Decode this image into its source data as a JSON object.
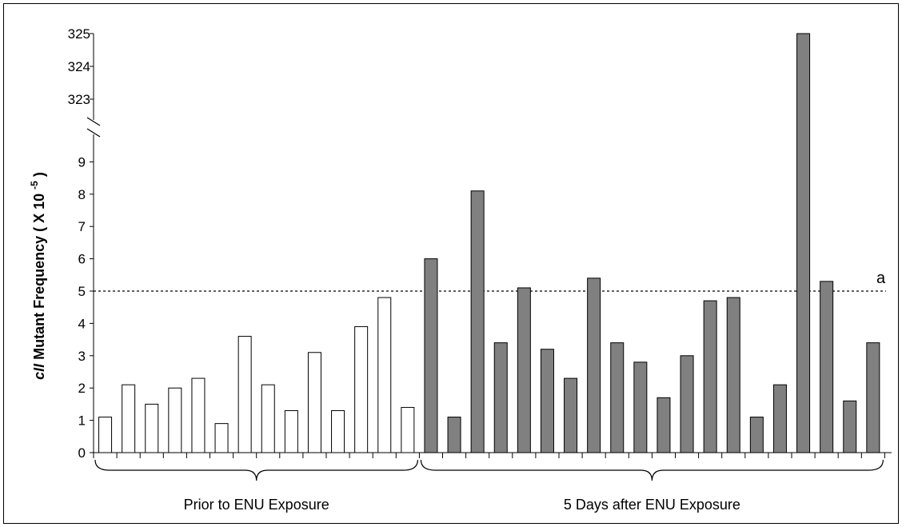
{
  "chart_data": {
    "type": "bar",
    "ylabel_italic": "cII",
    "ylabel_main": " Mutant Frequency ( X 10 ",
    "ylabel_exp": "-5",
    "ylabel_close": " )",
    "y_ticks_lower": [
      "0",
      "1",
      "2",
      "3",
      "4",
      "5",
      "6",
      "7",
      "8",
      "9"
    ],
    "y_ticks_upper": [
      "323",
      "324",
      "325"
    ],
    "axis_break": true,
    "threshold": {
      "value": 5,
      "style": "dotted",
      "label": "a"
    },
    "groups": [
      {
        "label": "Prior to ENU Exposure",
        "fill": "#ffffff",
        "values": [
          1.1,
          2.1,
          1.5,
          2.0,
          2.3,
          0.9,
          3.6,
          2.1,
          1.3,
          3.1,
          1.3,
          3.9,
          4.8,
          1.4
        ]
      },
      {
        "label": "5 Days after ENU Exposure",
        "fill": "#808080",
        "values": [
          6.0,
          1.1,
          8.1,
          3.4,
          5.1,
          3.2,
          2.3,
          5.4,
          3.4,
          2.8,
          1.7,
          3.0,
          4.7,
          4.8,
          1.1,
          2.1,
          325,
          5.3,
          1.6,
          3.4
        ]
      }
    ],
    "grid": false,
    "legend": "none"
  }
}
